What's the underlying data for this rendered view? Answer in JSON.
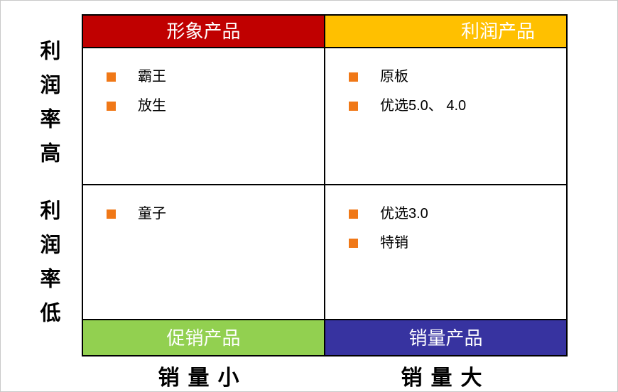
{
  "diagram": {
    "type": "2x2-quadrant-matrix",
    "colors": {
      "header_top_left": "#C00000",
      "header_top_right": "#FFC000",
      "footer_bottom_left": "#92D050",
      "footer_bottom_right": "#3733A0",
      "bullet": "#F07817",
      "grid_border": "#000000",
      "header_text": "#FFFFFF"
    },
    "y_axis": {
      "top_label": "利润率高",
      "bottom_label": "利润率低"
    },
    "x_axis": {
      "left_label": "销量小",
      "right_label": "销量大"
    },
    "headers": {
      "top_left": "形象产品",
      "top_right": "利润产品",
      "bottom_left": "促销产品",
      "bottom_right": "销量产品"
    },
    "quadrants": {
      "top_left": {
        "items": [
          "霸王",
          "放生"
        ]
      },
      "top_right": {
        "items": [
          "原板",
          "优选5.0、 4.0"
        ]
      },
      "bottom_left": {
        "items": [
          "童子"
        ]
      },
      "bottom_right": {
        "items": [
          "优选3.0",
          "特销"
        ]
      }
    }
  }
}
